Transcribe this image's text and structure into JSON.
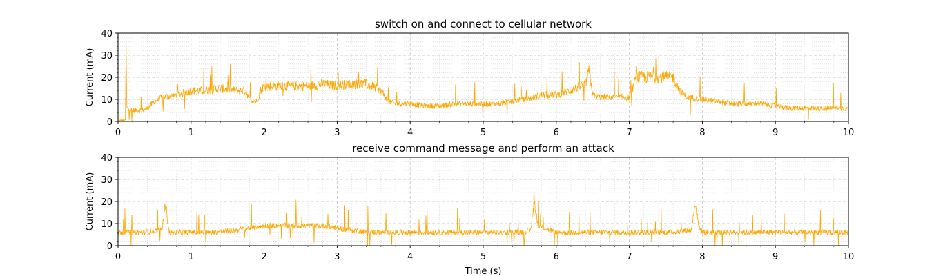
{
  "chart_data": [
    {
      "type": "line",
      "title": "switch on and connect to cellular network",
      "xlabel": "",
      "ylabel": "Current (mA)",
      "xlim": [
        0,
        10
      ],
      "ylim": [
        0,
        40
      ],
      "xticks": [
        "0",
        "1",
        "2",
        "3",
        "4",
        "5",
        "6",
        "7",
        "8",
        "9",
        "10"
      ],
      "yticks": [
        "0",
        "10",
        "20",
        "30",
        "40"
      ],
      "grid": true,
      "line_color": "#FFA500",
      "series": [
        {
          "x": [
            0,
            0.1,
            0.11,
            0.12,
            0.2,
            0.3,
            0.4,
            0.5,
            0.6,
            0.8,
            1.0,
            1.2,
            1.4,
            1.6,
            1.75,
            1.8,
            1.9,
            1.95,
            2.0,
            2.2,
            2.4,
            2.6,
            2.8,
            3.0,
            3.2,
            3.4,
            3.6,
            3.7,
            3.8,
            4.0,
            4.2,
            4.4,
            4.6,
            4.8,
            5.0,
            5.2,
            5.4,
            5.5,
            5.6,
            5.8,
            6.0,
            6.2,
            6.4,
            6.45,
            6.5,
            6.6,
            6.8,
            7.0,
            7.1,
            7.3,
            7.5,
            7.6,
            7.7,
            7.8,
            8.0,
            8.2,
            8.4,
            8.6,
            8.8,
            9.0,
            9.2,
            9.4,
            9.6,
            9.8,
            10.0
          ],
          "y": [
            0,
            0,
            34,
            6,
            5,
            5,
            6,
            9,
            11,
            12,
            14,
            14,
            15,
            14,
            14,
            10,
            9,
            14,
            16,
            16,
            16,
            16,
            17,
            16,
            17,
            17,
            14,
            9,
            8,
            8,
            7,
            7,
            8,
            8,
            8,
            8,
            9,
            10,
            10,
            12,
            12,
            14,
            17,
            23,
            12,
            11,
            11,
            11,
            20,
            20,
            20,
            20,
            13,
            11,
            10,
            9,
            8,
            8,
            8,
            7,
            6,
            6,
            6,
            6,
            6
          ]
        }
      ]
    },
    {
      "type": "line",
      "title": "receive command message and perform an attack",
      "xlabel": "Time (s)",
      "ylabel": "Current (mA)",
      "xlim": [
        0,
        10
      ],
      "ylim": [
        0,
        40
      ],
      "xticks": [
        "0",
        "1",
        "2",
        "3",
        "4",
        "5",
        "6",
        "7",
        "8",
        "9",
        "10"
      ],
      "yticks": [
        "0",
        "10",
        "20",
        "30",
        "40"
      ],
      "grid": true,
      "line_color": "#FFA500",
      "series": [
        {
          "x": [
            0,
            0.3,
            0.6,
            0.65,
            0.7,
            1.0,
            1.3,
            1.6,
            1.8,
            2.0,
            2.2,
            2.4,
            2.6,
            2.8,
            3.0,
            3.2,
            3.5,
            4.0,
            4.5,
            5.0,
            5.5,
            5.65,
            5.7,
            5.75,
            6.0,
            6.5,
            7.0,
            7.5,
            7.85,
            7.9,
            7.95,
            8.0,
            8.5,
            9.0,
            9.5,
            10.0
          ],
          "y": [
            6,
            6,
            7,
            19,
            6,
            6,
            6,
            7,
            8,
            9,
            9,
            9,
            9,
            9,
            8,
            7,
            6,
            6,
            6,
            6,
            6,
            7,
            20,
            9,
            6,
            6,
            6,
            6,
            7,
            20,
            9,
            6,
            6,
            6,
            6,
            6
          ]
        }
      ]
    }
  ]
}
